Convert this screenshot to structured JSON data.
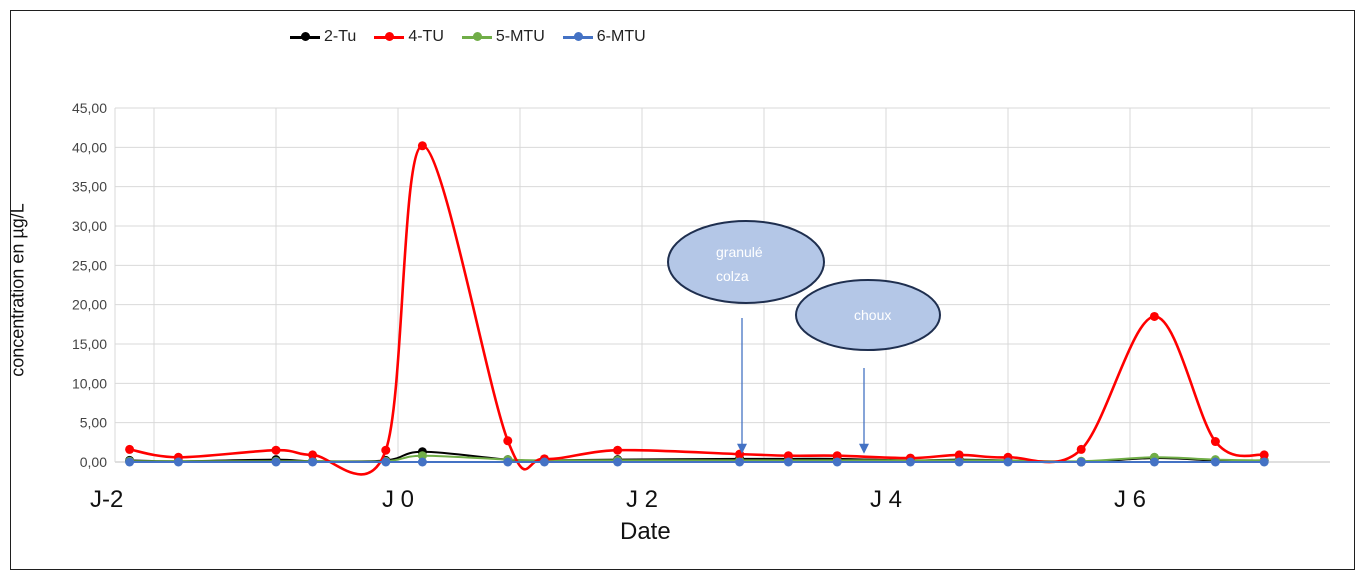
{
  "chart_data": {
    "type": "line",
    "title": "",
    "xlabel": "Date",
    "ylabel": "concentration en µg/L",
    "ylim": [
      0,
      45
    ],
    "y_ticks": [
      "0,00",
      "5,00",
      "10,00",
      "15,00",
      "20,00",
      "25,00",
      "30,00",
      "35,00",
      "40,00",
      "45,00"
    ],
    "x_tick_labels": [
      "J-2",
      "J 0",
      "J 2",
      "J 4",
      "J 6"
    ],
    "grid": true,
    "legend_placement": "top",
    "x": [
      -2.2,
      -1.8,
      -1.0,
      -0.7,
      -0.1,
      0.2,
      0.9,
      1.2,
      1.8,
      2.8,
      3.2,
      3.6,
      4.2,
      4.6,
      5.0,
      5.6,
      6.2,
      6.7,
      7.1
    ],
    "series": [
      {
        "name": "2-Tu",
        "color": "#000000",
        "values": [
          0.2,
          0.1,
          0.3,
          0.1,
          0.2,
          1.3,
          0.3,
          0.2,
          0.3,
          0.4,
          0.4,
          0.4,
          0.2,
          0.3,
          0.2,
          0.0,
          0.5,
          0.2,
          0.2
        ]
      },
      {
        "name": "4-TU",
        "color": "#ff0000",
        "values": [
          1.6,
          0.6,
          1.5,
          0.9,
          1.5,
          40.2,
          2.7,
          0.4,
          1.5,
          1.0,
          0.8,
          0.8,
          0.5,
          0.9,
          0.6,
          1.6,
          18.5,
          2.6,
          0.9
        ]
      },
      {
        "name": "5-MTU",
        "color": "#70ad47",
        "values": [
          0.1,
          0.1,
          0.1,
          0.1,
          0.1,
          0.8,
          0.3,
          0.2,
          0.2,
          0.2,
          0.2,
          0.2,
          0.2,
          0.2,
          0.2,
          0.1,
          0.6,
          0.3,
          0.2
        ]
      },
      {
        "name": "6-MTU",
        "color": "#4472c4",
        "values": [
          0.0,
          0.0,
          0.0,
          0.0,
          0.0,
          0.0,
          0.0,
          0.0,
          0.0,
          0.0,
          0.0,
          0.0,
          0.0,
          0.0,
          0.0,
          0.0,
          0.0,
          0.0,
          0.0
        ]
      }
    ],
    "annotations": [
      {
        "text_lines": [
          "granulé",
          "colza"
        ],
        "arrow_x": 3.0,
        "arrow_y": 0.8
      },
      {
        "text_lines": [
          "choux"
        ],
        "arrow_x": 4.0,
        "arrow_y": 0.8
      }
    ]
  }
}
